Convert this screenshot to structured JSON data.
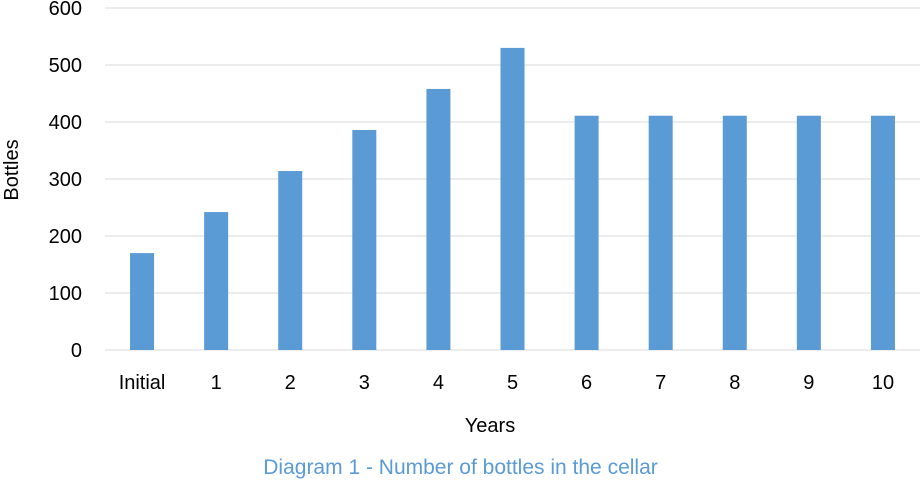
{
  "chart_data": {
    "type": "bar",
    "categories": [
      "Initial",
      "1",
      "2",
      "3",
      "4",
      "5",
      "6",
      "7",
      "8",
      "9",
      "10"
    ],
    "series": [
      {
        "values": [
          170,
          242,
          314,
          386,
          458,
          530,
          411,
          411,
          411,
          411,
          411
        ],
        "color": "#5b9bd5"
      }
    ],
    "xlabel": "Years",
    "ylabel": "Bottles",
    "ylim": [
      0,
      600
    ],
    "yticks": [
      0,
      100,
      200,
      300,
      400,
      500,
      600
    ],
    "grid": true,
    "legend": "none",
    "caption": "Diagram 1 - Number of bottles in the cellar"
  }
}
